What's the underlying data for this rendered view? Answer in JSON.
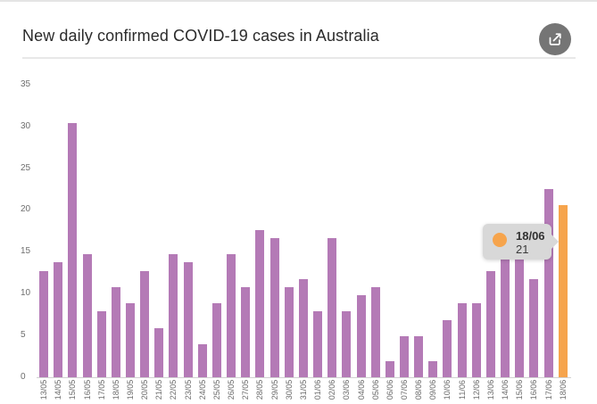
{
  "header": {
    "title": "New daily confirmed COVID-19 cases in Australia"
  },
  "chart_data": {
    "type": "bar",
    "title": "New daily confirmed COVID-19 cases in Australia",
    "categories": [
      "13/05",
      "14/05",
      "15/05",
      "16/05",
      "17/05",
      "18/05",
      "19/05",
      "20/05",
      "21/05",
      "22/05",
      "23/05",
      "24/05",
      "25/05",
      "26/05",
      "27/05",
      "28/05",
      "29/05",
      "30/05",
      "31/05",
      "01/06",
      "02/06",
      "03/06",
      "04/06",
      "05/06",
      "06/06",
      "07/06",
      "08/06",
      "09/06",
      "10/06",
      "11/06",
      "12/06",
      "13/06",
      "14/06",
      "15/06",
      "16/06",
      "17/06",
      "18/06"
    ],
    "values": [
      13,
      14,
      31,
      15,
      8,
      11,
      9,
      13,
      6,
      15,
      14,
      4,
      9,
      15,
      11,
      18,
      17,
      11,
      12,
      8,
      17,
      8,
      10,
      11,
      2,
      5,
      5,
      2,
      7,
      9,
      9,
      13,
      16,
      16,
      12,
      23,
      21
    ],
    "y_ticks": [
      0,
      5,
      10,
      15,
      20,
      25,
      30,
      35
    ],
    "ylim": [
      0,
      35
    ],
    "xlabel": "",
    "ylabel": "",
    "grid": false,
    "legend": "none",
    "bar_color": "#b47ab6",
    "highlight_color": "#f6a44c",
    "highlight_index": 36,
    "tooltip": {
      "date": "18/06",
      "value": "21"
    }
  },
  "colors": {
    "tooltip_bg": "#d8d8d8",
    "axis_text": "#6e6e6e",
    "title_text": "#2b2b2b",
    "divider": "#e8e8e8",
    "axis_line": "#d2d2d2",
    "share_button_bg": "#757575"
  }
}
